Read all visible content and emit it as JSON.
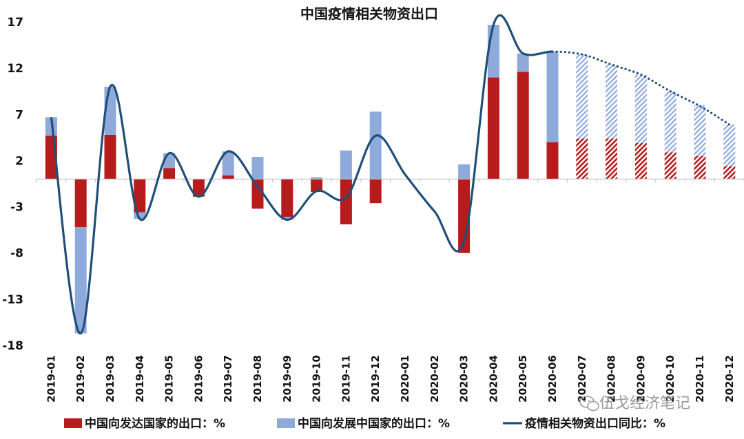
{
  "chart_data": {
    "type": "bar",
    "title": "中国疫情相关物资出口",
    "categories": [
      "2019-01",
      "2019-02",
      "2019-03",
      "2019-04",
      "2019-05",
      "2019-06",
      "2019-07",
      "2019-08",
      "2019-09",
      "2019-10",
      "2019-11",
      "2019-12",
      "2020-01",
      "2020-02",
      "2020-03",
      "2020-04",
      "2020-05",
      "2020-06",
      "2020-07",
      "2020-08",
      "2020-09",
      "2020-10",
      "2020-11",
      "2020-12"
    ],
    "y_ticks": [
      "17",
      "12",
      "7",
      "2",
      "-3",
      "-8",
      "-13",
      "-18"
    ],
    "ylim": [
      -18,
      17
    ],
    "stacked": true,
    "forecast_from_index": 18,
    "series": [
      {
        "name": "中国向发达国家的出口：%",
        "kind": "bar",
        "color": "#b71c1c",
        "values": [
          4.7,
          -5.2,
          4.8,
          -3.6,
          1.2,
          -1.9,
          0.4,
          -3.2,
          -4.1,
          -1.4,
          -4.9,
          -2.6,
          null,
          null,
          -8.0,
          11.0,
          11.6,
          4.0,
          4.4,
          4.4,
          3.9,
          2.9,
          2.5,
          1.4
        ]
      },
      {
        "name": "中国向发展中国家的出口：%",
        "kind": "bar",
        "color": "#8eaadb",
        "values": [
          2.0,
          -11.5,
          5.2,
          -0.7,
          1.6,
          0.0,
          2.6,
          2.4,
          -0.3,
          0.2,
          3.1,
          7.3,
          null,
          null,
          1.6,
          5.7,
          2.0,
          9.8,
          9.1,
          8.0,
          7.4,
          6.6,
          5.5,
          4.5
        ]
      },
      {
        "name": "疫情相关物资出口同比：%",
        "kind": "line",
        "color": "#1f4e79",
        "values": [
          6.7,
          -16.7,
          10.0,
          -4.3,
          2.8,
          -1.9,
          3.0,
          -0.8,
          -4.4,
          -1.3,
          -2.0,
          4.7,
          0.5,
          -3.5,
          -6.7,
          16.7,
          13.6,
          13.8,
          13.5,
          12.4,
          11.3,
          9.5,
          7.9,
          5.9
        ]
      }
    ],
    "grid": false,
    "legend_position": "bottom"
  },
  "watermark": {
    "text": "伍戈经济笔记",
    "icon": "wechat-icon"
  }
}
